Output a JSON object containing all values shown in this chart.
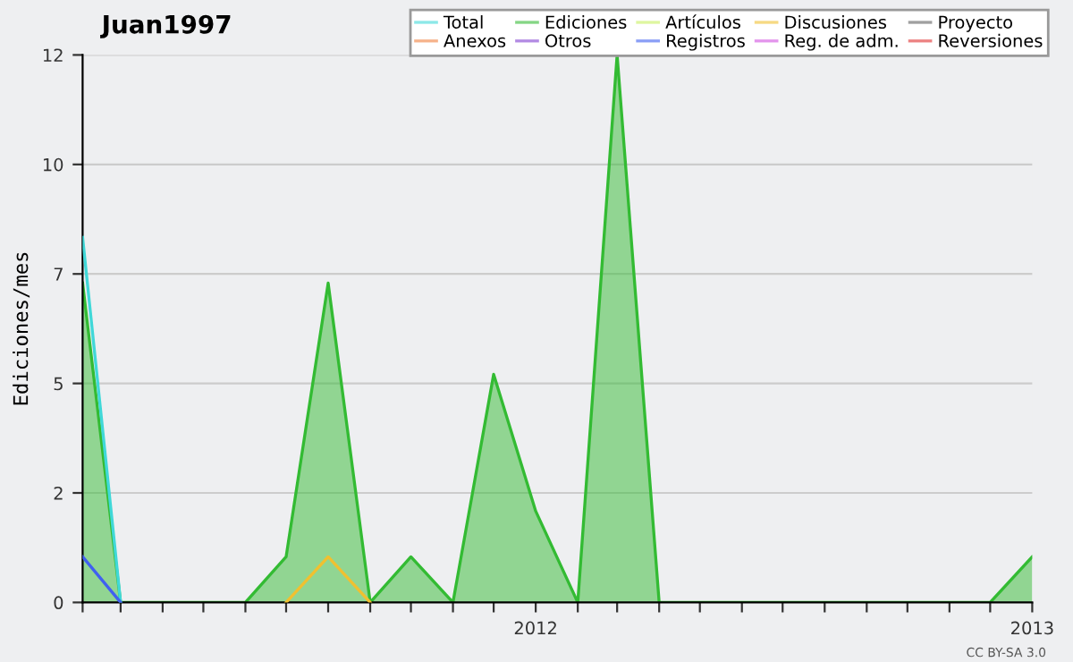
{
  "chart_data": {
    "type": "line",
    "title": "Juan1997",
    "ylabel": "Ediciones/mes",
    "x": [
      "2011-02",
      "2011-03",
      "2011-04",
      "2011-05",
      "2011-06",
      "2011-07",
      "2011-08",
      "2011-09",
      "2011-10",
      "2011-11",
      "2011-12",
      "2012-01",
      "2012-02",
      "2012-03",
      "2012-04",
      "2012-05",
      "2012-06",
      "2012-07",
      "2012-08",
      "2012-09",
      "2012-10",
      "2012-11",
      "2012-12",
      "2013-01"
    ],
    "series": [
      {
        "name": "Total",
        "color": "#40d8d8",
        "values": [
          8,
          0,
          null,
          null,
          null,
          null,
          null,
          null,
          null,
          null,
          null,
          null,
          null,
          null,
          null,
          null,
          null,
          null,
          null,
          null,
          null,
          null,
          null,
          null
        ]
      },
      {
        "name": "Ediciones",
        "type": "area",
        "color": "#33bb33",
        "values": [
          7,
          0,
          0,
          0,
          0,
          1,
          7,
          0,
          1,
          0,
          5,
          2,
          0,
          12,
          0,
          0,
          0,
          0,
          0,
          0,
          0,
          0,
          0,
          1
        ]
      },
      {
        "name": "Artículos",
        "color": "#c8f060",
        "values": [
          null,
          null,
          null,
          null,
          null,
          null,
          null,
          null,
          null,
          null,
          null,
          null,
          null,
          null,
          null,
          null,
          null,
          null,
          null,
          null,
          null,
          null,
          null,
          null
        ]
      },
      {
        "name": "Discusiones",
        "color": "#f0c030",
        "values": [
          null,
          null,
          null,
          null,
          null,
          0,
          1,
          0,
          null,
          null,
          null,
          null,
          null,
          null,
          null,
          null,
          null,
          null,
          null,
          null,
          null,
          null,
          null,
          null
        ]
      },
      {
        "name": "Proyecto",
        "color": "#606060",
        "values": [
          null,
          null,
          null,
          null,
          null,
          null,
          null,
          null,
          null,
          null,
          null,
          null,
          null,
          null,
          null,
          null,
          null,
          null,
          null,
          null,
          null,
          null,
          null,
          null
        ]
      },
      {
        "name": "Anexos",
        "color": "#f08040",
        "values": [
          null,
          null,
          null,
          null,
          null,
          null,
          null,
          null,
          null,
          null,
          null,
          null,
          null,
          null,
          null,
          null,
          null,
          null,
          null,
          null,
          null,
          null,
          null,
          null
        ]
      },
      {
        "name": "Otros",
        "color": "#8040d0",
        "values": [
          null,
          null,
          null,
          null,
          null,
          null,
          null,
          null,
          null,
          null,
          null,
          null,
          null,
          null,
          null,
          null,
          null,
          null,
          null,
          null,
          null,
          null,
          null,
          null
        ]
      },
      {
        "name": "Registros",
        "color": "#4060f0",
        "values": [
          1,
          0,
          null,
          null,
          null,
          null,
          null,
          null,
          null,
          null,
          null,
          null,
          null,
          null,
          null,
          null,
          null,
          null,
          null,
          null,
          null,
          null,
          null,
          null
        ]
      },
      {
        "name": "Reg. de adm.",
        "color": "#d050e0",
        "values": [
          null,
          null,
          null,
          null,
          null,
          null,
          null,
          null,
          null,
          null,
          null,
          null,
          null,
          null,
          null,
          null,
          null,
          null,
          null,
          null,
          null,
          null,
          null,
          null
        ]
      },
      {
        "name": "Reversiones",
        "color": "#e03030",
        "values": [
          null,
          null,
          null,
          null,
          null,
          null,
          null,
          null,
          null,
          null,
          null,
          null,
          null,
          null,
          null,
          null,
          null,
          null,
          null,
          null,
          null,
          null,
          null,
          null
        ]
      }
    ],
    "xlim": [
      "2011-02",
      "2013-01"
    ],
    "xticks": [
      {
        "value": "2011-02",
        "label": null
      },
      {
        "value": "2011-03",
        "label": null
      },
      {
        "value": "2011-04",
        "label": null
      },
      {
        "value": "2011-05",
        "label": null
      },
      {
        "value": "2011-06",
        "label": null
      },
      {
        "value": "2011-07",
        "label": null
      },
      {
        "value": "2011-08",
        "label": null
      },
      {
        "value": "2011-09",
        "label": null
      },
      {
        "value": "2011-10",
        "label": null
      },
      {
        "value": "2011-11",
        "label": null
      },
      {
        "value": "2011-12",
        "label": null
      },
      {
        "value": "2012-01",
        "label": "2012"
      },
      {
        "value": "2012-02",
        "label": null
      },
      {
        "value": "2012-03",
        "label": null
      },
      {
        "value": "2012-04",
        "label": null
      },
      {
        "value": "2012-05",
        "label": null
      },
      {
        "value": "2012-06",
        "label": null
      },
      {
        "value": "2012-07",
        "label": null
      },
      {
        "value": "2012-08",
        "label": null
      },
      {
        "value": "2012-09",
        "label": null
      },
      {
        "value": "2012-10",
        "label": null
      },
      {
        "value": "2012-11",
        "label": null
      },
      {
        "value": "2012-12",
        "label": null
      },
      {
        "value": "2013-01",
        "label": "2013"
      }
    ],
    "ylim": [
      0,
      12
    ],
    "yticks": [
      0,
      {
        "value": 2.4,
        "label": "2"
      },
      {
        "value": 4.8,
        "label": "5"
      },
      {
        "value": 7.2,
        "label": "7"
      },
      {
        "value": 9.6,
        "label": "10"
      },
      12
    ],
    "grid": "y",
    "legend": "top right",
    "marker": "none",
    "line_style": "solid",
    "annotations": [
      "CC BY-SA 3.0"
    ]
  }
}
